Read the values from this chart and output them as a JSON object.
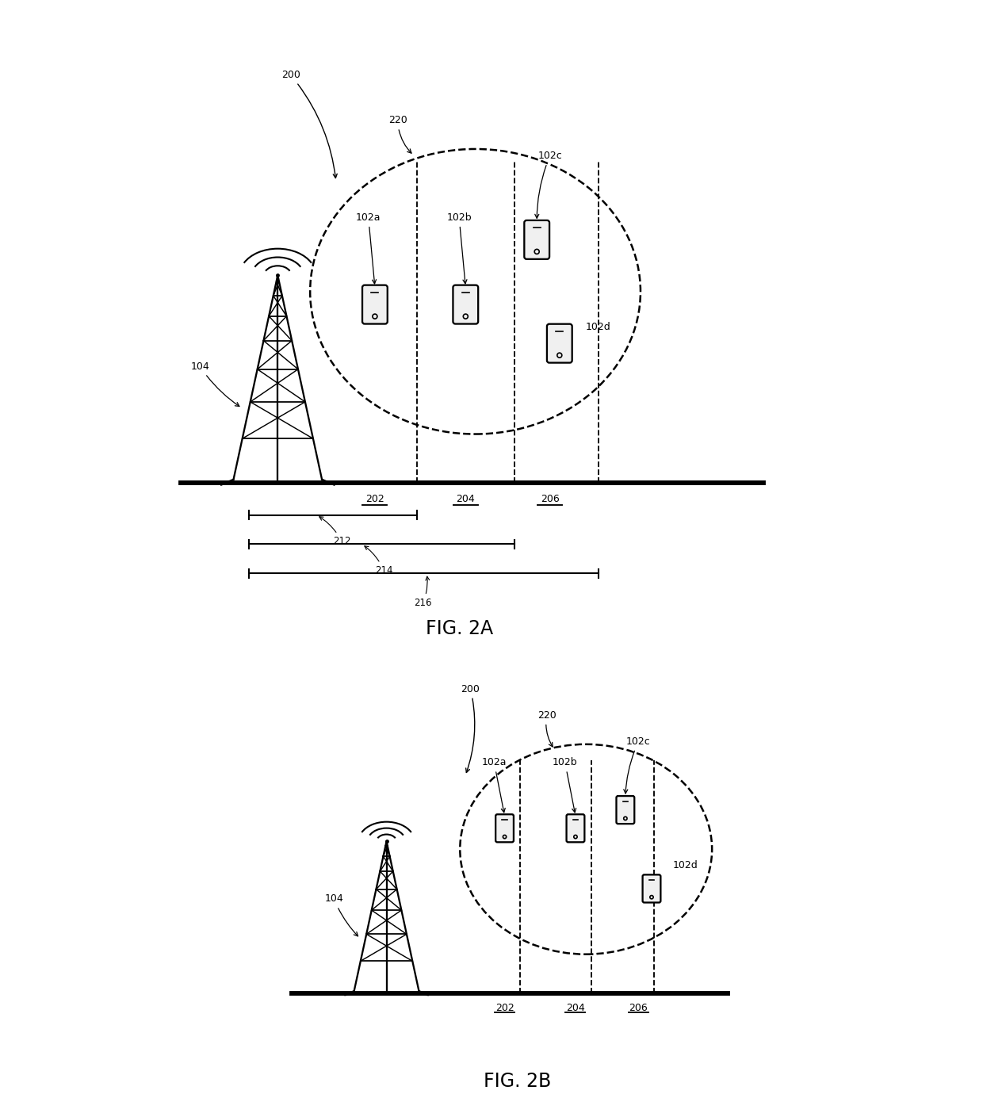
{
  "fig_title_a": "FIG. 2A",
  "fig_title_b": "FIG. 2B",
  "bg_color": "#ffffff",
  "line_color": "#000000",
  "label_200": "200",
  "label_104": "104",
  "label_220": "220",
  "label_202": "202",
  "label_204": "204",
  "label_206": "206",
  "label_102a": "102a",
  "label_102b": "102b",
  "label_102c": "102c",
  "label_102d": "102d",
  "label_212": "212",
  "label_214": "214",
  "label_216": "216"
}
